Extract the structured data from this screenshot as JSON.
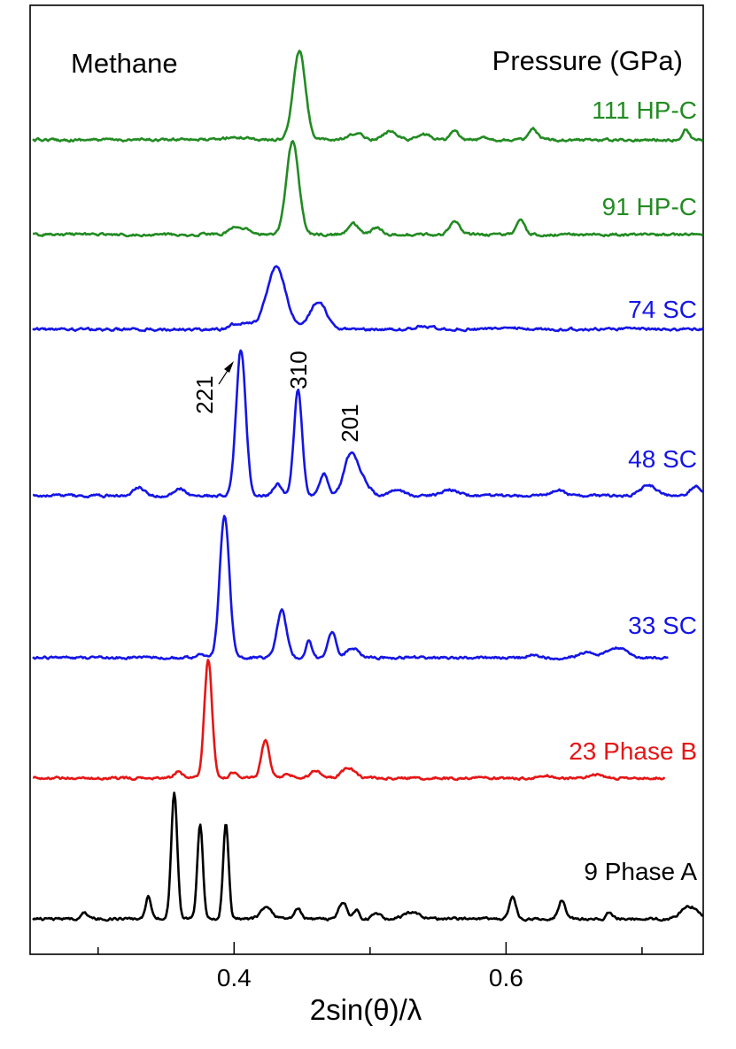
{
  "chart_data": {
    "type": "line",
    "title_left": "Methane",
    "title_right": "Pressure (GPa)",
    "xlabel": "2sin(θ)/λ",
    "xlim": [
      0.25,
      0.745
    ],
    "xticks": [
      0.4,
      0.6
    ],
    "xtick_labels": [
      "0.4",
      "0.6"
    ],
    "yaxis_ticks": false,
    "colors": {
      "green": "#228B22",
      "blue": "#1515E6",
      "red": "#E61515",
      "black": "#000000"
    },
    "series": [
      {
        "name": "111  HP-C",
        "color": "green",
        "xmax": 0.745,
        "peaks": [
          [
            0.365,
            0.015,
            0.005
          ],
          [
            0.398,
            0.03,
            0.005
          ],
          [
            0.41,
            0.025,
            0.004
          ],
          [
            0.448,
            1.0,
            0.0045
          ],
          [
            0.49,
            0.07,
            0.005
          ],
          [
            0.515,
            0.1,
            0.005
          ],
          [
            0.54,
            0.06,
            0.005
          ],
          [
            0.562,
            0.1,
            0.003
          ],
          [
            0.585,
            0.03,
            0.003
          ],
          [
            0.62,
            0.12,
            0.003
          ],
          [
            0.732,
            0.12,
            0.0025
          ]
        ]
      },
      {
        "name": "91  HP-C",
        "color": "green",
        "xmax": 0.745,
        "peaks": [
          [
            0.4,
            0.08,
            0.004
          ],
          [
            0.41,
            0.05,
            0.004
          ],
          [
            0.443,
            1.0,
            0.0045
          ],
          [
            0.488,
            0.11,
            0.004
          ],
          [
            0.505,
            0.07,
            0.004
          ],
          [
            0.562,
            0.15,
            0.0035
          ],
          [
            0.611,
            0.15,
            0.003
          ]
        ]
      },
      {
        "name": "74  SC",
        "color": "blue",
        "xmax": 0.745,
        "peaks": [
          [
            0.4,
            0.08,
            0.004
          ],
          [
            0.41,
            0.1,
            0.004
          ],
          [
            0.431,
            1.0,
            0.007
          ],
          [
            0.462,
            0.45,
            0.006
          ],
          [
            0.54,
            0.05,
            0.006
          ],
          [
            0.6,
            0.04,
            0.006
          ]
        ]
      },
      {
        "name": "48  SC",
        "color": "blue",
        "xmax": 0.745,
        "peaks": [
          [
            0.33,
            0.06,
            0.004
          ],
          [
            0.36,
            0.05,
            0.004
          ],
          [
            0.405,
            1.0,
            0.0035
          ],
          [
            0.432,
            0.08,
            0.003
          ],
          [
            0.447,
            0.72,
            0.003
          ],
          [
            0.466,
            0.15,
            0.003
          ],
          [
            0.486,
            0.28,
            0.005
          ],
          [
            0.495,
            0.08,
            0.005
          ],
          [
            0.52,
            0.04,
            0.005
          ],
          [
            0.56,
            0.04,
            0.006
          ],
          [
            0.638,
            0.04,
            0.005
          ],
          [
            0.705,
            0.07,
            0.006
          ],
          [
            0.74,
            0.07,
            0.004
          ]
        ]
      },
      {
        "name": "33  SC",
        "color": "blue",
        "xmax": 0.72,
        "peaks": [
          [
            0.375,
            0.03,
            0.003
          ],
          [
            0.393,
            1.0,
            0.0035
          ],
          [
            0.435,
            0.33,
            0.0035
          ],
          [
            0.455,
            0.12,
            0.002
          ],
          [
            0.472,
            0.18,
            0.003
          ],
          [
            0.487,
            0.07,
            0.004
          ],
          [
            0.62,
            0.02,
            0.004
          ],
          [
            0.66,
            0.04,
            0.006
          ],
          [
            0.682,
            0.07,
            0.007
          ]
        ]
      },
      {
        "name": "23  Phase B",
        "color": "red",
        "xmax": 0.717,
        "peaks": [
          [
            0.359,
            0.06,
            0.003
          ],
          [
            0.381,
            1.0,
            0.0028
          ],
          [
            0.4,
            0.05,
            0.003
          ],
          [
            0.423,
            0.32,
            0.003
          ],
          [
            0.44,
            0.03,
            0.003
          ],
          [
            0.46,
            0.06,
            0.004
          ],
          [
            0.484,
            0.08,
            0.005
          ],
          [
            0.63,
            0.02,
            0.004
          ],
          [
            0.665,
            0.03,
            0.005
          ]
        ]
      },
      {
        "name": "9  Phase A",
        "color": "black",
        "xmax": 0.745,
        "peaks": [
          [
            0.29,
            0.05,
            0.002
          ],
          [
            0.337,
            0.18,
            0.002
          ],
          [
            0.356,
            1.0,
            0.0022
          ],
          [
            0.375,
            0.76,
            0.002
          ],
          [
            0.394,
            0.77,
            0.002
          ],
          [
            0.424,
            0.1,
            0.004
          ],
          [
            0.447,
            0.08,
            0.0025
          ],
          [
            0.48,
            0.13,
            0.003
          ],
          [
            0.49,
            0.07,
            0.002
          ],
          [
            0.505,
            0.04,
            0.003
          ],
          [
            0.531,
            0.05,
            0.006
          ],
          [
            0.605,
            0.17,
            0.0025
          ],
          [
            0.641,
            0.15,
            0.0025
          ],
          [
            0.676,
            0.05,
            0.002
          ],
          [
            0.735,
            0.1,
            0.006
          ]
        ]
      }
    ],
    "annotations": [
      {
        "text": "221",
        "x": 0.405,
        "rotate": true,
        "arrow": true
      },
      {
        "text": "310",
        "x": 0.447,
        "rotate": true,
        "arrow": false
      },
      {
        "text": "201",
        "x": 0.486,
        "rotate": true,
        "arrow": false
      }
    ]
  }
}
